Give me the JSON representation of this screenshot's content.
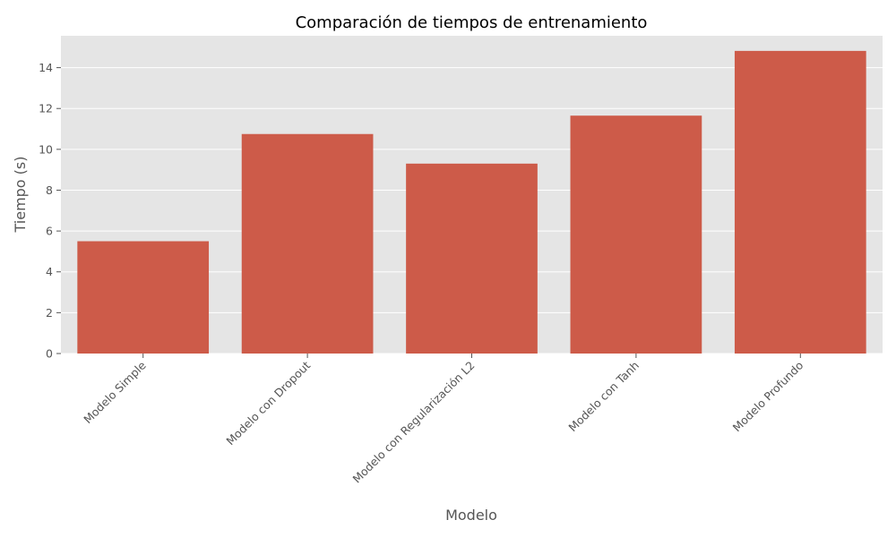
{
  "chart_data": {
    "type": "bar",
    "title": "Comparación de tiempos de entrenamiento",
    "xlabel": "Modelo",
    "ylabel": "Tiempo (s)",
    "categories": [
      "Modelo Simple",
      "Modelo con Dropout",
      "Modelo con Regularización L2",
      "Modelo con Tanh",
      "Modelo Profundo"
    ],
    "values": [
      5.5,
      10.75,
      9.3,
      11.65,
      14.82
    ],
    "ylim": [
      0,
      15.56
    ],
    "yticks": [
      0,
      2,
      4,
      6,
      8,
      10,
      12,
      14
    ],
    "grid": true,
    "colors": {
      "bar": "#cd5b49",
      "plot_background": "#e5e5e5",
      "grid": "#ffffff",
      "text": "#555555"
    }
  }
}
